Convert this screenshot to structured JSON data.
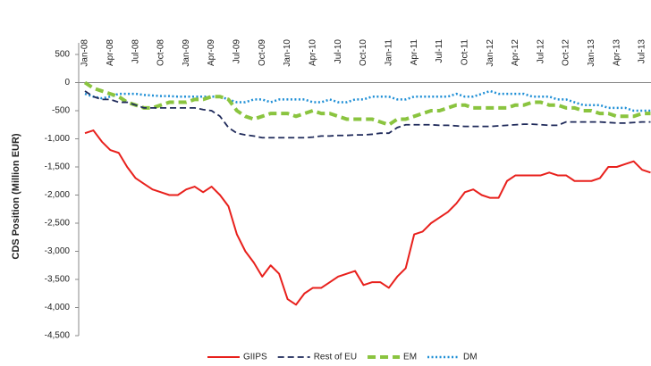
{
  "chart_data": {
    "type": "line",
    "y_label": "CDS Position (Million EUR)",
    "categories": [
      "Jan-08",
      null,
      null,
      "Apr-08",
      null,
      null,
      "Jul-08",
      null,
      null,
      "Oct-08",
      null,
      null,
      "Jan-09",
      null,
      null,
      "Apr-09",
      null,
      null,
      "Jul-09",
      null,
      null,
      "Oct-09",
      null,
      null,
      "Jan-10",
      null,
      null,
      "Apr-10",
      null,
      null,
      "Jul-10",
      null,
      null,
      "Oct-10",
      null,
      null,
      "Jan-11",
      null,
      null,
      "Apr-11",
      null,
      null,
      "Jul-11",
      null,
      null,
      "Oct-11",
      null,
      null,
      "Jan-12",
      null,
      null,
      "Apr-12",
      null,
      null,
      "Jul-12",
      null,
      null,
      "Oct-12",
      null,
      null,
      "Jan-13",
      null,
      null,
      "Apr-13",
      null,
      null,
      "Jul-13",
      null
    ],
    "series": [
      {
        "name": "GIIPS",
        "color": "#e8201c",
        "line_style": "solid",
        "values": [
          -900,
          -850,
          -1050,
          -1200,
          -1250,
          -1500,
          -1700,
          -1800,
          -1900,
          -1950,
          -2000,
          -2000,
          -1900,
          -1850,
          -1950,
          -1850,
          -2000,
          -2200,
          -2700,
          -3000,
          -3200,
          -3450,
          -3250,
          -3400,
          -3850,
          -3950,
          -3750,
          -3650,
          -3650,
          -3550,
          -3450,
          -3400,
          -3350,
          -3600,
          -3550,
          -3550,
          -3650,
          -3450,
          -3300,
          -2700,
          -2650,
          -2500,
          -2400,
          -2300,
          -2150,
          -1950,
          -1900,
          -2000,
          -2050,
          -2050,
          -1750,
          -1650,
          -1650,
          -1650,
          -1650,
          -1600,
          -1650,
          -1650,
          -1750,
          -1750,
          -1750,
          -1700,
          -1500,
          -1500,
          -1450,
          -1400,
          -1550,
          -1600
        ]
      },
      {
        "name": "Rest of EU",
        "color": "#1f2a5a",
        "line_style": "dashed",
        "values": [
          -150,
          -250,
          -300,
          -300,
          -350,
          -350,
          -400,
          -450,
          -450,
          -450,
          -450,
          -450,
          -450,
          -450,
          -480,
          -500,
          -600,
          -800,
          -900,
          -930,
          -950,
          -980,
          -980,
          -980,
          -980,
          -980,
          -980,
          -970,
          -950,
          -950,
          -940,
          -940,
          -930,
          -930,
          -920,
          -900,
          -900,
          -800,
          -750,
          -750,
          -750,
          -750,
          -760,
          -760,
          -770,
          -780,
          -780,
          -780,
          -780,
          -770,
          -760,
          -750,
          -740,
          -740,
          -750,
          -760,
          -760,
          -700,
          -700,
          -700,
          -700,
          -700,
          -710,
          -720,
          -720,
          -710,
          -700,
          -700
        ]
      },
      {
        "name": "EM",
        "color": "#8ac43f",
        "line_style": "thick-dashed",
        "values": [
          0,
          -100,
          -150,
          -200,
          -250,
          -350,
          -400,
          -450,
          -450,
          -400,
          -350,
          -350,
          -350,
          -300,
          -300,
          -250,
          -250,
          -300,
          -500,
          -600,
          -650,
          -600,
          -550,
          -550,
          -550,
          -600,
          -550,
          -500,
          -550,
          -550,
          -600,
          -650,
          -650,
          -650,
          -650,
          -700,
          -750,
          -650,
          -650,
          -600,
          -550,
          -500,
          -500,
          -450,
          -400,
          -400,
          -450,
          -450,
          -450,
          -450,
          -450,
          -400,
          -400,
          -350,
          -350,
          -400,
          -400,
          -450,
          -450,
          -500,
          -500,
          -550,
          -550,
          -600,
          -600,
          -600,
          -550,
          -550
        ]
      },
      {
        "name": "DM",
        "color": "#1f8fd6",
        "line_style": "dotted",
        "values": [
          -200,
          -250,
          -280,
          -250,
          -200,
          -200,
          -200,
          -220,
          -230,
          -240,
          -240,
          -250,
          -250,
          -250,
          -250,
          -250,
          -250,
          -300,
          -350,
          -350,
          -300,
          -300,
          -350,
          -300,
          -300,
          -300,
          -300,
          -350,
          -350,
          -300,
          -350,
          -350,
          -300,
          -300,
          -250,
          -250,
          -250,
          -300,
          -300,
          -250,
          -250,
          -250,
          -250,
          -250,
          -200,
          -250,
          -250,
          -200,
          -150,
          -200,
          -200,
          -200,
          -200,
          -250,
          -250,
          -250,
          -300,
          -300,
          -350,
          -400,
          -400,
          -400,
          -450,
          -450,
          -450,
          -500,
          -500,
          -500
        ]
      }
    ],
    "ylim": [
      -4500,
      500
    ],
    "yticks": [
      500,
      0,
      -500,
      {
        "value": -1000,
        "label": "-1,000"
      },
      {
        "value": -1500,
        "label": "-1,500"
      },
      {
        "value": -2000,
        "label": "-2,000"
      },
      {
        "value": -2500,
        "label": "-2,500"
      },
      {
        "value": -3000,
        "label": "-3,000"
      },
      {
        "value": -3500,
        "label": "-3,500"
      },
      {
        "value": -4000,
        "label": "-4,000"
      },
      {
        "value": -4500,
        "label": "-4,500"
      }
    ],
    "grid": false,
    "legend": "bottom"
  }
}
